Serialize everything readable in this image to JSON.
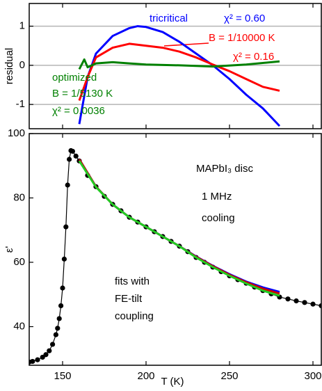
{
  "chart_data": [
    {
      "type": "line",
      "ylabel": "residual",
      "xlim": [
        130,
        305
      ],
      "xticks": [
        150,
        200,
        250,
        300
      ],
      "ylim": [
        -1.62,
        1.58
      ],
      "yticks": [
        -1,
        0,
        1
      ],
      "grid": true,
      "series": [
        {
          "color": "#0000ff",
          "marker": "none",
          "x": [
            160,
            165,
            170,
            180,
            190,
            195,
            200,
            210,
            220,
            230,
            240,
            250,
            260,
            270,
            280
          ],
          "values": [
            -1.5,
            -0.3,
            0.3,
            0.75,
            0.95,
            1.0,
            0.98,
            0.85,
            0.6,
            0.3,
            0.0,
            -0.35,
            -0.75,
            -1.1,
            -1.55
          ]
        },
        {
          "color": "#ff0000",
          "marker": "none",
          "x": [
            160,
            165,
            170,
            180,
            190,
            200,
            210,
            220,
            230,
            240,
            250,
            260,
            270,
            280
          ],
          "values": [
            -0.9,
            -0.3,
            0.2,
            0.45,
            0.55,
            0.5,
            0.45,
            0.35,
            0.2,
            0.02,
            -0.15,
            -0.35,
            -0.55,
            -0.65
          ]
        },
        {
          "color": "#008000",
          "marker": "none",
          "x": [
            160,
            163,
            165,
            170,
            180,
            190,
            200,
            220,
            240,
            260,
            280
          ],
          "values": [
            -0.1,
            0.15,
            -0.05,
            0.05,
            0.08,
            0.05,
            0.02,
            0.0,
            -0.03,
            0.02,
            0.1
          ]
        }
      ],
      "annotations": [
        {
          "text": "tricritical",
          "color": "#0000ff"
        },
        {
          "text": "χ² = 0.60",
          "color": "#0000ff"
        },
        {
          "text": "B = 1/10000 K",
          "color": "#ff0000"
        },
        {
          "text": "χ² = 0.16",
          "color": "#ff0000"
        },
        {
          "text": "optimized",
          "color": "#008000"
        },
        {
          "text": "B = 1/5130 K",
          "color": "#008000"
        },
        {
          "text": "χ² = 0.0036",
          "color": "#008000"
        }
      ]
    },
    {
      "type": "line",
      "ylabel": "ε'",
      "xlabel": "T (K)",
      "xlim": [
        130,
        305
      ],
      "xticks": [
        150,
        200,
        250,
        300
      ],
      "ylim": [
        28,
        100
      ],
      "yticks": [
        40,
        60,
        80,
        100
      ],
      "grid": false,
      "series": [
        {
          "color": "#000000",
          "marker": "circle",
          "x": [
            130,
            132,
            135,
            138,
            140,
            142,
            144,
            146,
            147,
            148,
            149,
            150,
            151,
            152,
            153,
            154,
            155,
            156,
            158,
            160,
            165,
            170,
            175,
            180,
            185,
            190,
            195,
            200,
            205,
            210,
            215,
            220,
            225,
            230,
            235,
            240,
            245,
            250,
            255,
            260,
            265,
            270,
            275,
            280,
            285,
            290,
            295,
            300,
            305
          ],
          "values": [
            29,
            29.2,
            29.7,
            30.5,
            31.3,
            32.5,
            34.5,
            37.5,
            39.5,
            42.5,
            46.5,
            52,
            61,
            71,
            84,
            92,
            94.7,
            94.5,
            93,
            91.5,
            87,
            83.5,
            80.5,
            78,
            76,
            74,
            72.5,
            71,
            69.5,
            68,
            66.5,
            65,
            63.3,
            61.5,
            60,
            58.5,
            57.1,
            55.8,
            54.6,
            53.5,
            52.3,
            51.2,
            50.2,
            49.2,
            48.6,
            48,
            47.5,
            47,
            46.5
          ]
        },
        {
          "color": "#0000ff",
          "marker": "none",
          "x": [
            160,
            170,
            180,
            190,
            200,
            210,
            220,
            230,
            240,
            250,
            260,
            270,
            280
          ],
          "values": [
            92,
            83.5,
            78,
            74,
            71,
            68,
            65,
            61.8,
            58.9,
            56.3,
            54,
            52.2,
            50.8
          ]
        },
        {
          "color": "#cc0000",
          "marker": "none",
          "x": [
            160,
            170,
            180,
            190,
            200,
            210,
            220,
            230,
            240,
            250,
            260,
            270,
            280
          ],
          "values": [
            92,
            83.5,
            78,
            74,
            71,
            68,
            65,
            61.7,
            58.8,
            56.1,
            53.8,
            51.8,
            50.3
          ]
        },
        {
          "color": "#22cc22",
          "marker": "none",
          "x": [
            160,
            170,
            180,
            190,
            200,
            210,
            220,
            230,
            240,
            250,
            260,
            270,
            280
          ],
          "values": [
            91.5,
            83.4,
            78,
            74,
            71,
            68,
            65,
            61.5,
            58.5,
            55.8,
            53.4,
            51.2,
            49.6
          ]
        }
      ],
      "annotations": [
        {
          "text": "MAPbI₃ disc",
          "color": "#000000"
        },
        {
          "text": "1 MHz",
          "color": "#000000"
        },
        {
          "text": "cooling",
          "color": "#000000"
        },
        {
          "text": "fits with",
          "color": "#000000"
        },
        {
          "text": "FE-tilt",
          "color": "#000000"
        },
        {
          "text": "coupling",
          "color": "#000000"
        }
      ]
    }
  ]
}
